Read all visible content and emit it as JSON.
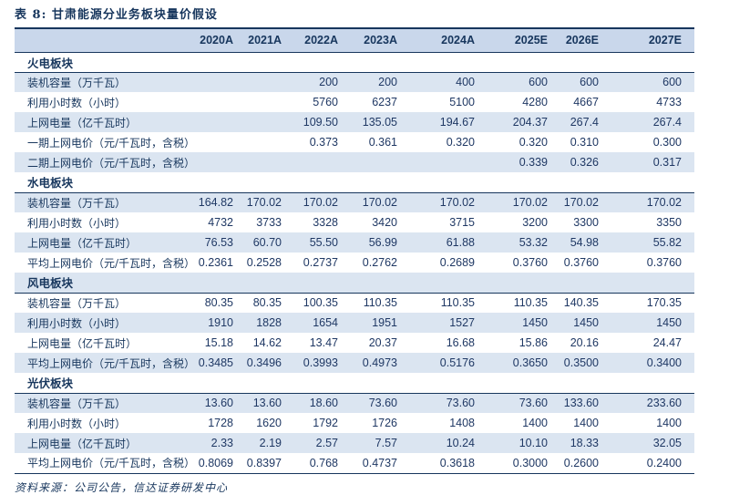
{
  "title": "表 8:  甘肃能源分业务板块量价假设",
  "source": "资料来源：公司公告，信达证券研发中心",
  "colors": {
    "accent_navy": "#17365d",
    "number_navy": "#1f3864",
    "header_band": "#c9d7eb",
    "row_band": "#dbe5f1",
    "background": "#ffffff"
  },
  "table": {
    "columns": [
      "",
      "2020A",
      "2021A",
      "2022A",
      "2023A",
      "2024A",
      "2025E",
      "2026E",
      "2027E"
    ],
    "sections": [
      {
        "name": "火电板块",
        "rows": [
          {
            "label": "装机容量（万千瓦）",
            "values": [
              "",
              "",
              "200",
              "200",
              "400",
              "600",
              "600",
              "600"
            ]
          },
          {
            "label": "利用小时数（小时）",
            "values": [
              "",
              "",
              "5760",
              "6237",
              "5100",
              "4280",
              "4667",
              "4733"
            ]
          },
          {
            "label": "上网电量（亿千瓦时）",
            "values": [
              "",
              "",
              "109.50",
              "135.05",
              "194.67",
              "204.37",
              "267.4",
              "267.4"
            ]
          },
          {
            "label": "一期上网电价（元/千瓦时，含税）",
            "values": [
              "",
              "",
              "0.373",
              "0.361",
              "0.320",
              "0.320",
              "0.310",
              "0.300"
            ]
          },
          {
            "label": "二期上网电价（元/千瓦时，含税）",
            "values": [
              "",
              "",
              "",
              "",
              "",
              "0.339",
              "0.326",
              "0.317"
            ]
          }
        ]
      },
      {
        "name": "水电板块",
        "rows": [
          {
            "label": "装机容量（万千瓦）",
            "values": [
              "164.82",
              "170.02",
              "170.02",
              "170.02",
              "170.02",
              "170.02",
              "170.02",
              "170.02"
            ]
          },
          {
            "label": "利用小时数（小时）",
            "values": [
              "4732",
              "3733",
              "3328",
              "3420",
              "3715",
              "3200",
              "3300",
              "3350"
            ]
          },
          {
            "label": "上网电量（亿千瓦时）",
            "values": [
              "76.53",
              "60.70",
              "55.50",
              "56.99",
              "61.88",
              "53.32",
              "54.98",
              "55.82"
            ]
          },
          {
            "label": "平均上网电价（元/千瓦时，含税）",
            "values": [
              "0.2361",
              "0.2528",
              "0.2737",
              "0.2762",
              "0.2689",
              "0.3760",
              "0.3760",
              "0.3760"
            ]
          }
        ]
      },
      {
        "name": "风电板块",
        "rows": [
          {
            "label": "装机容量（万千瓦）",
            "values": [
              "80.35",
              "80.35",
              "100.35",
              "110.35",
              "110.35",
              "110.35",
              "140.35",
              "170.35"
            ]
          },
          {
            "label": "利用小时数（小时）",
            "values": [
              "1910",
              "1828",
              "1654",
              "1951",
              "1527",
              "1450",
              "1450",
              "1450"
            ]
          },
          {
            "label": "上网电量（亿千瓦时）",
            "values": [
              "15.18",
              "14.62",
              "13.47",
              "20.37",
              "16.68",
              "15.86",
              "20.16",
              "24.47"
            ]
          },
          {
            "label": "平均上网电价（元/千瓦时，含税）",
            "values": [
              "0.3485",
              "0.3496",
              "0.3993",
              "0.4973",
              "0.5176",
              "0.3650",
              "0.3500",
              "0.3400"
            ]
          }
        ]
      },
      {
        "name": "光伏板块",
        "rows": [
          {
            "label": "装机容量（万千瓦）",
            "values": [
              "13.60",
              "13.60",
              "18.60",
              "73.60",
              "73.60",
              "73.60",
              "133.60",
              "233.60"
            ]
          },
          {
            "label": "利用小时数（小时）",
            "values": [
              "1728",
              "1620",
              "1792",
              "1726",
              "1408",
              "1400",
              "1400",
              "1400"
            ]
          },
          {
            "label": "上网电量（亿千瓦时）",
            "values": [
              "2.33",
              "2.19",
              "2.57",
              "7.57",
              "10.24",
              "10.10",
              "18.33",
              "32.05"
            ]
          },
          {
            "label": "平均上网电价（元/千瓦时，含税）",
            "values": [
              "0.8069",
              "0.8397",
              "0.768",
              "0.4737",
              "0.3618",
              "0.3000",
              "0.2600",
              "0.2400"
            ]
          }
        ]
      }
    ]
  }
}
